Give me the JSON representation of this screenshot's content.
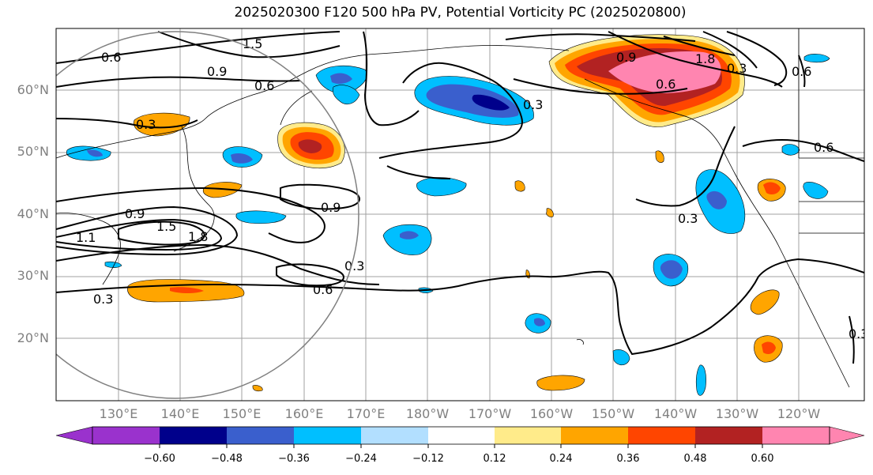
{
  "title": "2025020300 F120 500 hPa PV, Potential Vorticity PC (2025020800)",
  "lat_labels": [
    "60°N",
    "50°N",
    "40°N",
    "30°N",
    "20°N"
  ],
  "lon_labels": [
    "130°E",
    "140°E",
    "150°E",
    "160°E",
    "170°E",
    "180°W",
    "170°W",
    "160°W",
    "150°W",
    "140°W",
    "130°W",
    "120°W"
  ],
  "colorbar": {
    "ticks": [
      "−0.60",
      "−0.48",
      "−0.36",
      "−0.24",
      "−0.12",
      "0.12",
      "0.24",
      "0.36",
      "0.48",
      "0.60"
    ],
    "colors": [
      "#9a32cd",
      "#00008b",
      "#3a5fcd",
      "#00bfff",
      "#b2dfff",
      "#ffffff",
      "#ffeb8a",
      "#ffa500",
      "#ff4500",
      "#b22222",
      "#ff85b0"
    ]
  },
  "contour_labels": [
    "0.6",
    "1.5",
    "0.9",
    "0.6",
    "0.3",
    "0.9",
    "1.5",
    "1.8",
    "1.1",
    "0.3",
    "0.9",
    "0.3",
    "0.6",
    "0.3",
    "0.9",
    "1.8",
    "0.6",
    "0.3",
    "0.3",
    "0.6",
    "0.6",
    "0.3"
  ]
}
